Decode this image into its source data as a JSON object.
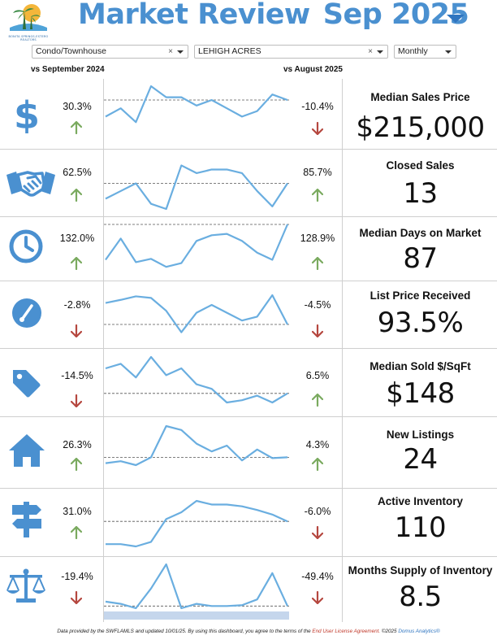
{
  "header": {
    "logo_text": "BONITA SPRINGS-ESTERO REALTORS",
    "title": "Market Review",
    "period": "Sep 2025"
  },
  "filters": {
    "property_type": "Condo/Townhouse",
    "area": "LEHIGH ACRES",
    "frequency": "Monthly",
    "clear_symbol": "×"
  },
  "comparisons": {
    "yoy_label": "vs September 2024",
    "mom_label": "vs August 2025"
  },
  "colors": {
    "title": "#4a90d0",
    "icon": "#4a90d0",
    "line": "#6aaee0",
    "up": "#7aaa5f",
    "down": "#b5473f"
  },
  "metrics": [
    {
      "label": "Median Sales Price",
      "value": "$215,000",
      "icon": "dollar-icon",
      "yoy": "30.3%",
      "yoy_dir": "up",
      "mom": "-10.4%",
      "mom_dir": "down",
      "trend": [
        0.45,
        0.6,
        0.35,
        1.0,
        0.8,
        0.8,
        0.65,
        0.75,
        0.6,
        0.45,
        0.55,
        0.85,
        0.75
      ],
      "reference": 0.75
    },
    {
      "label": "Closed Sales",
      "value": "13",
      "icon": "handshake-icon",
      "yoy": "62.5%",
      "yoy_dir": "up",
      "mom": "85.7%",
      "mom_dir": "up",
      "trend": [
        0.2,
        0.35,
        0.5,
        0.1,
        0.0,
        0.85,
        0.7,
        0.77,
        0.77,
        0.7,
        0.35,
        0.05,
        0.5
      ],
      "reference": 0.5
    },
    {
      "label": "Median Days on Market",
      "value": "87",
      "icon": "clock-icon",
      "yoy": "132.0%",
      "yoy_dir": "up",
      "mom": "128.9%",
      "mom_dir": "up",
      "trend": [
        0.25,
        0.7,
        0.2,
        0.27,
        0.1,
        0.18,
        0.65,
        0.77,
        0.8,
        0.65,
        0.4,
        0.25,
        1.0
      ],
      "reference": 1.0
    },
    {
      "label": "List Price Received",
      "value": "93.5%",
      "icon": "gauge-icon",
      "yoy": "-2.8%",
      "yoy_dir": "down",
      "mom": "-4.5%",
      "mom_dir": "down",
      "trend": [
        0.8,
        0.88,
        0.97,
        0.93,
        0.6,
        0.05,
        0.55,
        0.75,
        0.55,
        0.35,
        0.45,
        1.0,
        0.25
      ],
      "reference": 0.25
    },
    {
      "label": "Median Sold $/SqFt",
      "value": "$148",
      "icon": "tag-icon",
      "yoy": "-14.5%",
      "yoy_dir": "down",
      "mom": "6.5%",
      "mom_dir": "up",
      "trend": [
        0.75,
        0.85,
        0.55,
        1.0,
        0.6,
        0.75,
        0.4,
        0.3,
        0.0,
        0.05,
        0.15,
        0.0,
        0.2
      ],
      "reference": 0.2
    },
    {
      "label": "New Listings",
      "value": "24",
      "icon": "house-icon",
      "yoy": "26.3%",
      "yoy_dir": "up",
      "mom": "4.3%",
      "mom_dir": "up",
      "trend": [
        0.05,
        0.1,
        0.0,
        0.2,
        1.0,
        0.9,
        0.55,
        0.35,
        0.5,
        0.12,
        0.4,
        0.18,
        0.2
      ],
      "reference": 0.2
    },
    {
      "label": "Active Inventory",
      "value": "110",
      "icon": "signpost-icon",
      "yoy": "31.0%",
      "yoy_dir": "up",
      "mom": "-6.0%",
      "mom_dir": "down",
      "trend": [
        0.05,
        0.05,
        0.0,
        0.1,
        0.6,
        0.75,
        1.0,
        0.92,
        0.92,
        0.88,
        0.8,
        0.7,
        0.55
      ],
      "reference": 0.55
    },
    {
      "label": "Months Supply of Inventory",
      "value": "8.5",
      "icon": "scales-icon",
      "yoy": "-19.4%",
      "yoy_dir": "down",
      "mom": "-49.4%",
      "mom_dir": "down",
      "trend": [
        0.15,
        0.1,
        0.0,
        0.45,
        1.0,
        0.0,
        0.1,
        0.05,
        0.05,
        0.07,
        0.2,
        0.8,
        0.05
      ],
      "reference": 0.05
    }
  ],
  "footer": {
    "text1": "Data provided by the SWFLAMLS and updated 10/01/25.  By using this dashboard, you agree to the terms of the ",
    "eula": "End User License Agreement.",
    "text2": "  ©2025 ",
    "brand": "Domus Analytics®"
  }
}
